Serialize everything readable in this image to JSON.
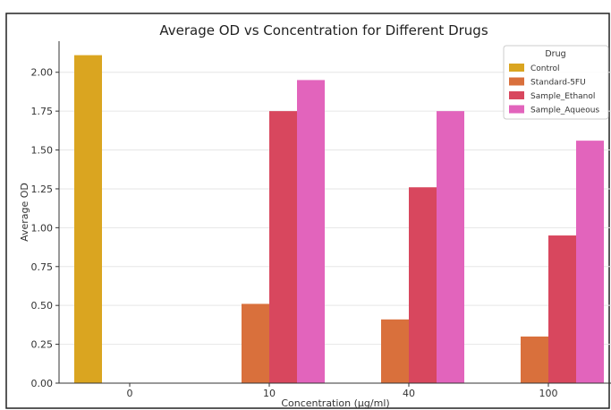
{
  "chart_data": {
    "type": "bar",
    "title": "Average OD vs Concentration for Different Drugs",
    "xlabel": "Concentration (µg/ml)",
    "ylabel": "Average OD",
    "categories": [
      "0",
      "10",
      "40",
      "100"
    ],
    "ylim": [
      0,
      2.2
    ],
    "yticks": [
      "0.00",
      "0.25",
      "0.50",
      "0.75",
      "1.00",
      "1.25",
      "1.50",
      "1.75",
      "2.00"
    ],
    "grid": true,
    "legend": {
      "title": "Drug",
      "placement": "top-right"
    },
    "series": [
      {
        "name": "Control",
        "color": "#DAA520",
        "values": [
          2.11,
          null,
          null,
          null
        ]
      },
      {
        "name": "Standard-5FU",
        "color": "#D9703C",
        "values": [
          null,
          0.51,
          0.41,
          0.3
        ]
      },
      {
        "name": "Sample_Ethanol",
        "color": "#D8475E",
        "values": [
          null,
          1.75,
          1.26,
          0.95
        ]
      },
      {
        "name": "Sample_Aqueous",
        "color": "#E264BC",
        "values": [
          null,
          1.95,
          1.75,
          1.56
        ]
      }
    ]
  }
}
